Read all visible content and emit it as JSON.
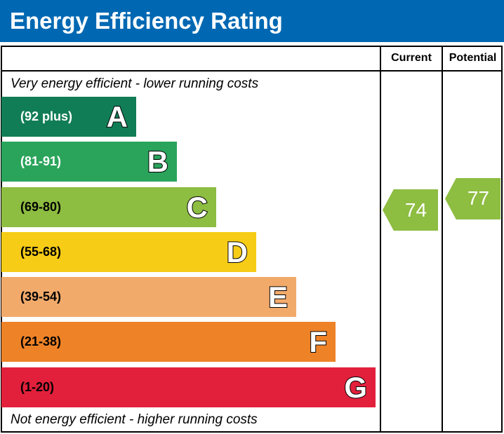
{
  "chart_data": {
    "type": "bar",
    "title": "Energy Efficiency Rating",
    "columns": [
      "Current",
      "Potential"
    ],
    "top_note": "Very energy efficient - lower running costs",
    "bottom_note": "Not energy efficient - higher running costs",
    "bands": [
      {
        "letter": "A",
        "range": "(92 plus)",
        "color": "#117d57",
        "text_color": "#ffffff"
      },
      {
        "letter": "B",
        "range": "(81-91)",
        "color": "#2aa45b",
        "text_color": "#ffffff"
      },
      {
        "letter": "C",
        "range": "(69-80)",
        "color": "#8dbd41",
        "text_color": "#000000"
      },
      {
        "letter": "D",
        "range": "(55-68)",
        "color": "#f6cc17",
        "text_color": "#000000"
      },
      {
        "letter": "E",
        "range": "(39-54)",
        "color": "#f2aa6b",
        "text_color": "#000000"
      },
      {
        "letter": "F",
        "range": "(21-38)",
        "color": "#ee8227",
        "text_color": "#000000"
      },
      {
        "letter": "G",
        "range": "(1-20)",
        "color": "#e2203b",
        "text_color": "#000000"
      }
    ],
    "current": {
      "value": "74",
      "band": "C",
      "color": "#8dbd41"
    },
    "potential": {
      "value": "77",
      "band": "C",
      "color": "#8dbd41"
    }
  }
}
